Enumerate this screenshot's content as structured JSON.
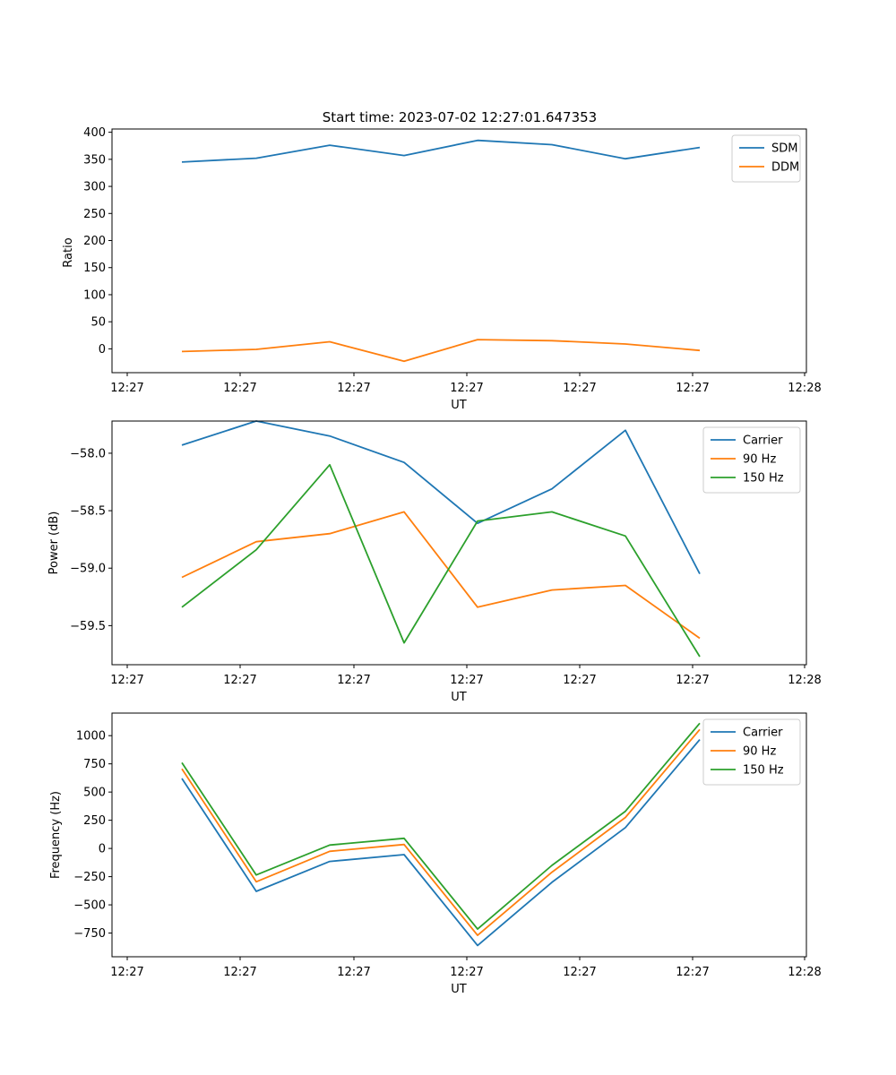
{
  "colors": {
    "blue": "#1f77b4",
    "orange": "#ff7f0e",
    "green": "#2ca02c"
  },
  "chart_data": [
    {
      "type": "line",
      "title": "Start time: 2023-07-02 12:27:01.647353",
      "xlabel": "UT",
      "ylabel": "Ratio",
      "xticklabels": [
        "12:27",
        "12:27",
        "12:27",
        "12:27",
        "12:27",
        "12:27",
        "12:28"
      ],
      "yticks": [
        0,
        50,
        100,
        150,
        200,
        250,
        300,
        350,
        400
      ],
      "yticklabels": [
        "0",
        "50",
        "100",
        "150",
        "200",
        "250",
        "300",
        "350",
        "400"
      ],
      "ylim": [
        -44,
        406
      ],
      "legend": "top-right",
      "series": [
        {
          "name": "SDM",
          "color": "#1f77b4",
          "values": [
            345,
            352,
            376,
            357,
            385,
            377,
            351,
            372
          ]
        },
        {
          "name": "DDM",
          "color": "#ff7f0e",
          "values": [
            -5,
            -1,
            13,
            -23,
            17,
            15,
            9,
            -3
          ]
        }
      ]
    },
    {
      "type": "line",
      "title": "",
      "xlabel": "UT",
      "ylabel": "Power (dB)",
      "xticklabels": [
        "12:27",
        "12:27",
        "12:27",
        "12:27",
        "12:27",
        "12:27",
        "12:28"
      ],
      "yticks": [
        -58.0,
        -58.5,
        -59.0,
        -59.5
      ],
      "yticklabels": [
        "−58.0",
        "−58.5",
        "−59.0",
        "−59.5"
      ],
      "ylim": [
        -59.84,
        -57.72
      ],
      "legend": "top-right",
      "series": [
        {
          "name": "Carrier",
          "color": "#1f77b4",
          "values": [
            -57.93,
            -57.72,
            -57.85,
            -58.08,
            -58.61,
            -58.31,
            -57.8,
            -59.05
          ]
        },
        {
          "name": "90 Hz",
          "color": "#ff7f0e",
          "values": [
            -59.08,
            -58.77,
            -58.7,
            -58.51,
            -59.34,
            -59.19,
            -59.15,
            -59.61
          ]
        },
        {
          "name": "150 Hz",
          "color": "#2ca02c",
          "values": [
            -59.34,
            -58.84,
            -58.1,
            -59.65,
            -58.59,
            -58.51,
            -58.72,
            -59.77
          ]
        }
      ]
    },
    {
      "type": "line",
      "title": "",
      "xlabel": "UT",
      "ylabel": "Frequency (Hz)",
      "xticklabels": [
        "12:27",
        "12:27",
        "12:27",
        "12:27",
        "12:27",
        "12:27",
        "12:28"
      ],
      "yticks": [
        1000,
        750,
        500,
        250,
        0,
        -250,
        -500,
        -750
      ],
      "yticklabels": [
        "1000",
        "750",
        "500",
        "250",
        "0",
        "−250",
        "−500",
        "−750"
      ],
      "ylim": [
        -960,
        1200
      ],
      "legend": "top-right",
      "series": [
        {
          "name": "Carrier",
          "color": "#1f77b4",
          "values": [
            620,
            -380,
            -115,
            -55,
            -860,
            -300,
            185,
            965
          ]
        },
        {
          "name": "90 Hz",
          "color": "#ff7f0e",
          "values": [
            705,
            -295,
            -25,
            35,
            -770,
            -210,
            275,
            1055
          ]
        },
        {
          "name": "150 Hz",
          "color": "#2ca02c",
          "values": [
            760,
            -235,
            30,
            90,
            -715,
            -150,
            330,
            1110
          ]
        }
      ]
    }
  ]
}
